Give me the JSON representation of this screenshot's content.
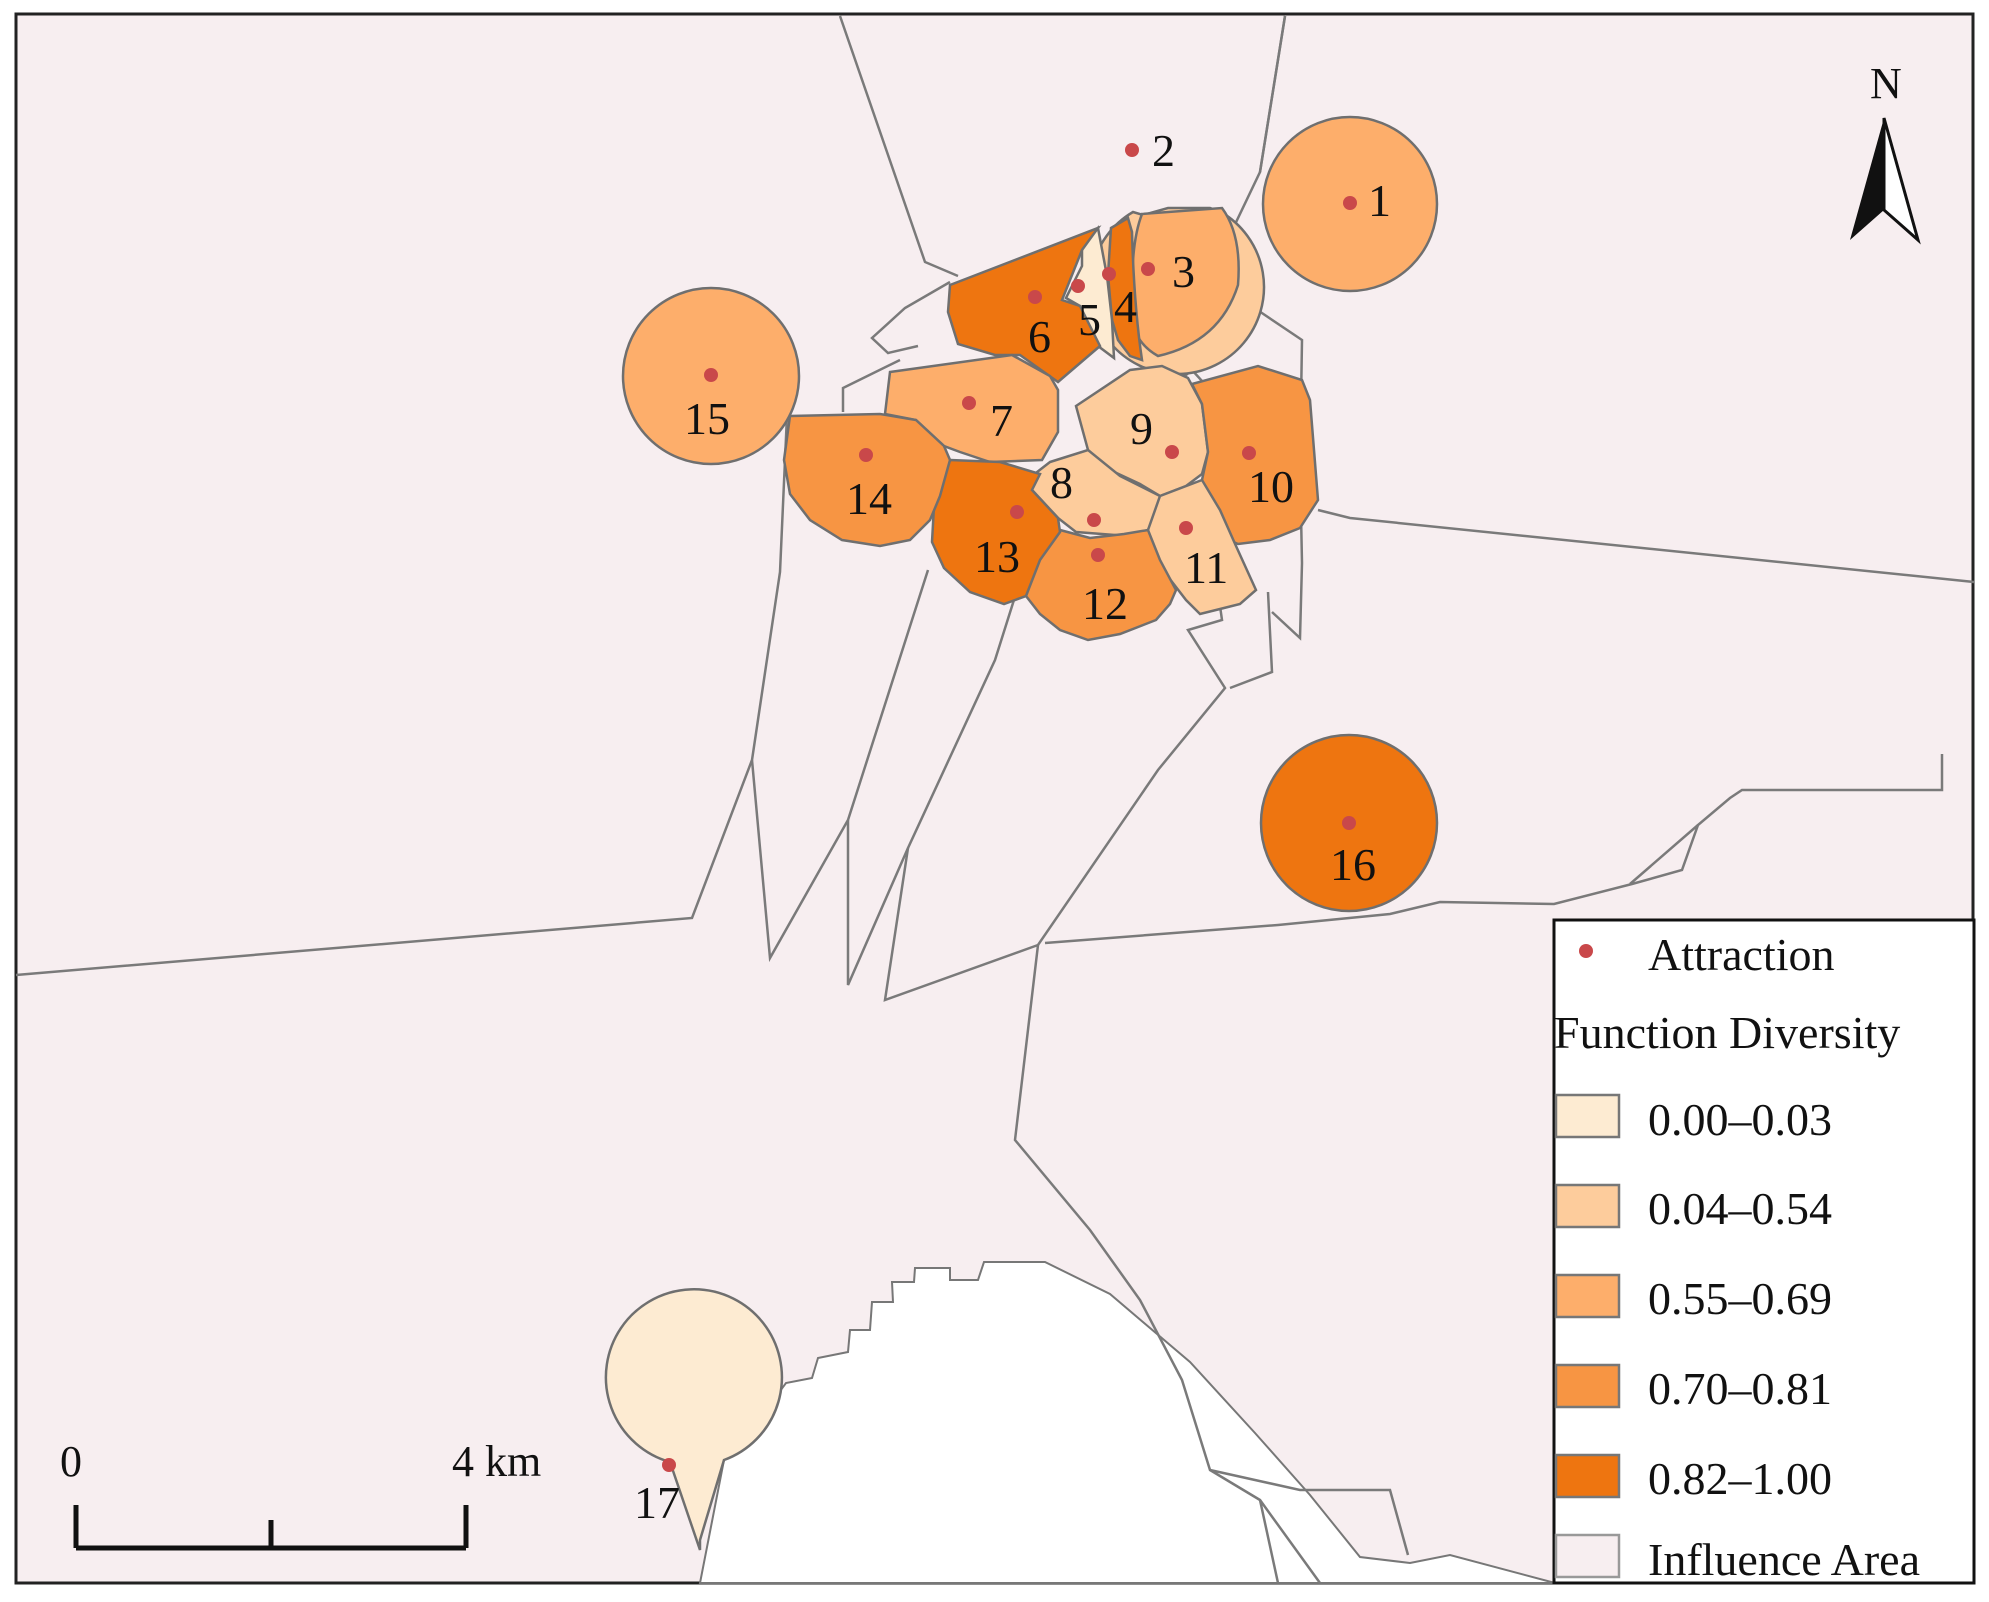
{
  "map": {
    "north_label": "N",
    "scale_bar": {
      "start_label": "0",
      "end_label": "4 km"
    },
    "legend": {
      "point_label": "Attraction",
      "group_title": "Function Diversity",
      "classes": [
        {
          "label": "0.00–0.03",
          "color": "#fdebd2"
        },
        {
          "label": "0.04–0.54",
          "color": "#fdcc9c"
        },
        {
          "label": "0.55–0.69",
          "color": "#fdae6b"
        },
        {
          "label": "0.70–0.81",
          "color": "#f79543"
        },
        {
          "label": "0.82–1.00",
          "color": "#ee7510"
        }
      ],
      "background_label": "Influence Area",
      "background_color": "#f7eef0",
      "point_color": "#c9484a"
    },
    "attractions": [
      {
        "id": "1",
        "label": "1",
        "diversity_class": "0.55–0.69"
      },
      {
        "id": "2",
        "label": "2",
        "diversity_class": "0.04–0.54"
      },
      {
        "id": "3",
        "label": "3",
        "diversity_class": "0.55–0.69"
      },
      {
        "id": "4",
        "label": "4",
        "diversity_class": "0.82–1.00"
      },
      {
        "id": "5",
        "label": "5",
        "diversity_class": "0.00–0.03"
      },
      {
        "id": "6",
        "label": "6",
        "diversity_class": "0.82–1.00"
      },
      {
        "id": "7",
        "label": "7",
        "diversity_class": "0.55–0.69"
      },
      {
        "id": "8",
        "label": "8",
        "diversity_class": "0.04–0.54"
      },
      {
        "id": "9",
        "label": "9",
        "diversity_class": "0.04–0.54"
      },
      {
        "id": "10",
        "label": "10",
        "diversity_class": "0.70–0.81"
      },
      {
        "id": "11",
        "label": "11",
        "diversity_class": "0.04–0.54"
      },
      {
        "id": "12",
        "label": "12",
        "diversity_class": "0.70–0.81"
      },
      {
        "id": "13",
        "label": "13",
        "diversity_class": "0.82–1.00"
      },
      {
        "id": "14",
        "label": "14",
        "diversity_class": "0.70–0.81"
      },
      {
        "id": "15",
        "label": "15",
        "diversity_class": "0.55–0.69"
      },
      {
        "id": "16",
        "label": "16",
        "diversity_class": "0.82–1.00"
      },
      {
        "id": "17",
        "label": "17",
        "diversity_class": "0.00–0.03"
      }
    ]
  }
}
